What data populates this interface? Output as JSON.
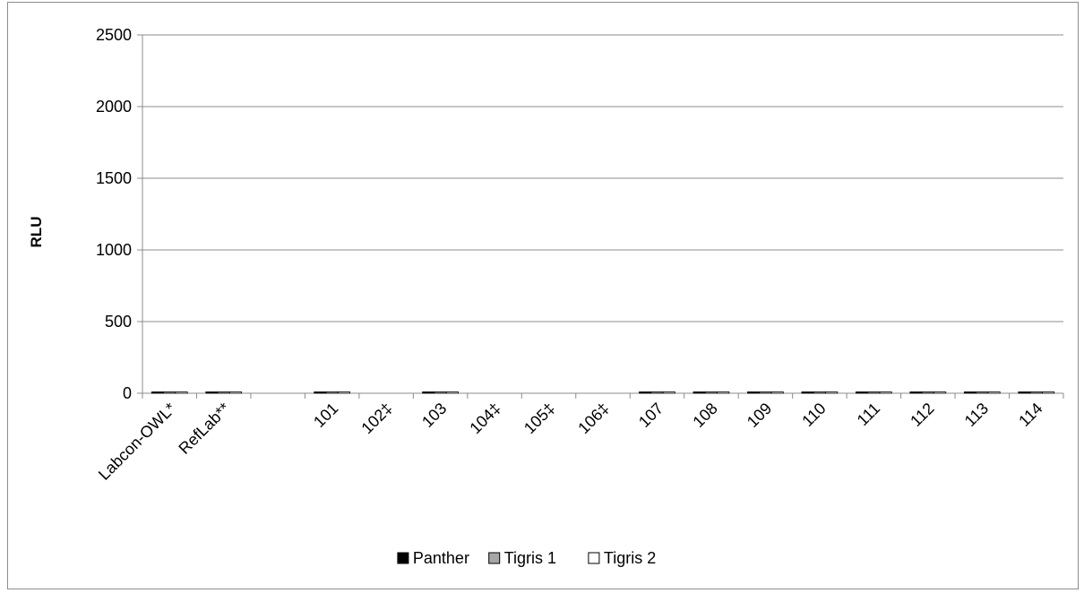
{
  "chart_data": {
    "type": "bar",
    "title": "",
    "xlabel": "",
    "ylabel": "RLU",
    "ylim": [
      0,
      2500
    ],
    "yticks": [
      0,
      500,
      1000,
      1500,
      2000,
      2500
    ],
    "grid": true,
    "legend_position": "bottom",
    "categories": [
      "Labcon-OWL*",
      "RefLab**",
      "",
      "101",
      "102‡",
      "103",
      "104‡",
      "105‡",
      "106‡",
      "107",
      "108",
      "109",
      "110",
      "111",
      "112",
      "113",
      "114"
    ],
    "series": [
      {
        "name": "Panther",
        "color": "#000000",
        "values": [
          5,
          4,
          null,
          4,
          null,
          4,
          null,
          null,
          null,
          4,
          4,
          4,
          4,
          4,
          4,
          4,
          4
        ]
      },
      {
        "name": "Tigris 1",
        "color": "#a6a6a6",
        "values": [
          5,
          4,
          null,
          5,
          null,
          4,
          null,
          null,
          null,
          4,
          4,
          4,
          4,
          4,
          4,
          4,
          4
        ]
      },
      {
        "name": "Tigris 2",
        "color": "#ffffff",
        "values": [
          5,
          4,
          null,
          5,
          null,
          4,
          null,
          null,
          null,
          4,
          4,
          4,
          4,
          4,
          4,
          4,
          4
        ]
      }
    ]
  }
}
